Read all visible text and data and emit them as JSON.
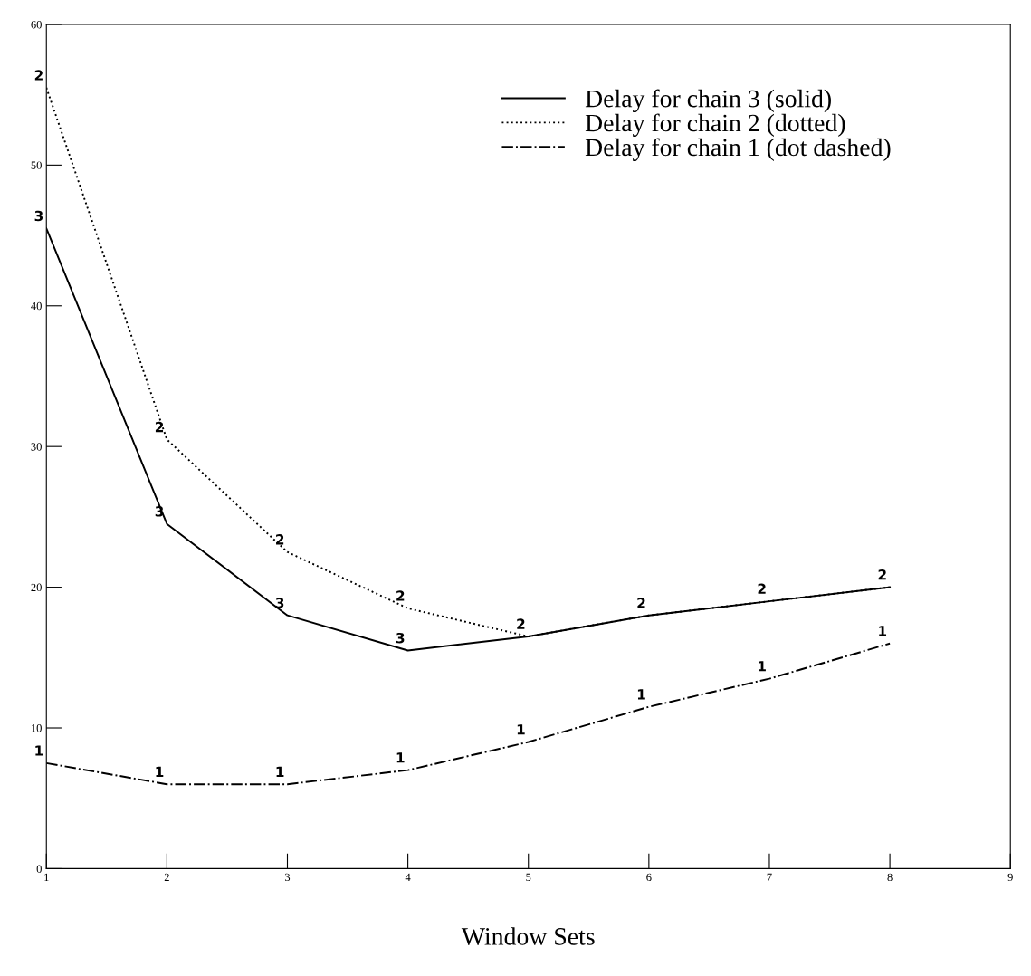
{
  "chart_data": {
    "type": "line",
    "xlabel": "Window Sets",
    "x": [
      1,
      2,
      3,
      4,
      5,
      6,
      7,
      8
    ],
    "xlim": [
      1,
      9
    ],
    "xticks": [
      1,
      2,
      3,
      4,
      5,
      6,
      7,
      8,
      9
    ],
    "ylim": [
      0,
      60
    ],
    "yticks": [
      0,
      10,
      20,
      30,
      40,
      50,
      60
    ],
    "grid": false,
    "legend": "top right",
    "series": [
      {
        "name": "Delay for chain 3 (solid)",
        "color": "#000000",
        "line_style": "solid",
        "values": [
          45.5,
          24.5,
          18,
          15.5,
          16.5,
          18,
          19,
          20
        ]
      },
      {
        "name": "Delay for chain 2 (dotted)",
        "color": "#000000",
        "line_style": "dotted",
        "values": [
          55.5,
          30.5,
          22.5,
          18.5,
          16.5,
          18,
          19,
          20
        ]
      },
      {
        "name": "Delay for chain 1 (dot dashed)",
        "color": "#000000",
        "line_style": "dashdot",
        "values": [
          7.5,
          6,
          6,
          7,
          9,
          11.5,
          13.5,
          16
        ]
      }
    ],
    "annotations": [
      {
        "text": "3",
        "x": 1,
        "y": 45.5
      },
      {
        "text": "3",
        "x": 2,
        "y": 24.5
      },
      {
        "text": "3",
        "x": 3,
        "y": 18
      },
      {
        "text": "3",
        "x": 4,
        "y": 15.5
      },
      {
        "text": "2",
        "x": 1,
        "y": 55.5
      },
      {
        "text": "2",
        "x": 2,
        "y": 30.5
      },
      {
        "text": "2",
        "x": 3,
        "y": 22.5
      },
      {
        "text": "2",
        "x": 4,
        "y": 18.5
      },
      {
        "text": "2",
        "x": 5,
        "y": 16.5
      },
      {
        "text": "2",
        "x": 6,
        "y": 18
      },
      {
        "text": "2",
        "x": 7,
        "y": 19
      },
      {
        "text": "2",
        "x": 8,
        "y": 20
      },
      {
        "text": "1",
        "x": 1,
        "y": 7.5
      },
      {
        "text": "1",
        "x": 2,
        "y": 6
      },
      {
        "text": "1",
        "x": 3,
        "y": 6
      },
      {
        "text": "1",
        "x": 4,
        "y": 7
      },
      {
        "text": "1",
        "x": 5,
        "y": 9
      },
      {
        "text": "1",
        "x": 6,
        "y": 11.5
      },
      {
        "text": "1",
        "x": 7,
        "y": 13.5
      },
      {
        "text": "1",
        "x": 8,
        "y": 16
      }
    ]
  }
}
